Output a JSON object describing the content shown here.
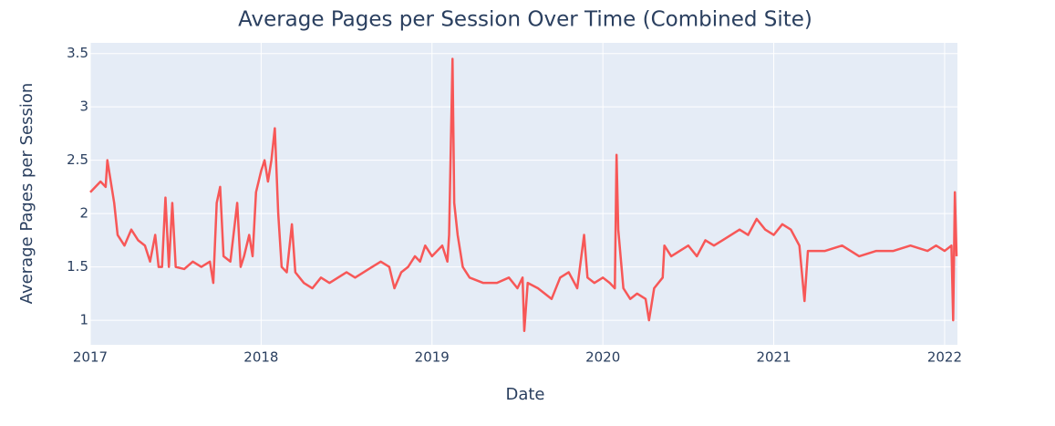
{
  "chart_data": {
    "type": "line",
    "title": "Average Pages per Session Over Time (Combined Site)",
    "x_label": "Date",
    "y_label": "Average Pages per Session",
    "color": "#f75757",
    "xlim": [
      2017,
      2022.075
    ],
    "xticks": [
      2017,
      2018,
      2019,
      2020,
      2021,
      2022
    ],
    "ylim": [
      0.77,
      3.6
    ],
    "yticks": [
      1,
      1.5,
      2,
      2.5,
      3,
      3.5
    ],
    "grid": true,
    "x": [
      2017.0,
      2017.03,
      2017.06,
      2017.09,
      2017.1,
      2017.12,
      2017.14,
      2017.16,
      2017.2,
      2017.24,
      2017.28,
      2017.32,
      2017.35,
      2017.38,
      2017.4,
      2017.42,
      2017.44,
      2017.46,
      2017.48,
      2017.5,
      2017.55,
      2017.6,
      2017.65,
      2017.7,
      2017.72,
      2017.74,
      2017.76,
      2017.78,
      2017.82,
      2017.86,
      2017.88,
      2017.9,
      2017.93,
      2017.95,
      2017.97,
      2018.0,
      2018.02,
      2018.04,
      2018.06,
      2018.08,
      2018.1,
      2018.12,
      2018.15,
      2018.18,
      2018.2,
      2018.25,
      2018.3,
      2018.35,
      2018.4,
      2018.45,
      2018.5,
      2018.55,
      2018.6,
      2018.65,
      2018.7,
      2018.75,
      2018.78,
      2018.82,
      2018.86,
      2018.9,
      2018.93,
      2018.96,
      2019.0,
      2019.03,
      2019.06,
      2019.09,
      2019.1,
      2019.12,
      2019.13,
      2019.15,
      2019.18,
      2019.22,
      2019.3,
      2019.38,
      2019.45,
      2019.5,
      2019.53,
      2019.54,
      2019.56,
      2019.62,
      2019.66,
      2019.7,
      2019.75,
      2019.8,
      2019.85,
      2019.89,
      2019.91,
      2019.95,
      2020.0,
      2020.04,
      2020.07,
      2020.08,
      2020.09,
      2020.12,
      2020.16,
      2020.2,
      2020.25,
      2020.27,
      2020.3,
      2020.35,
      2020.36,
      2020.4,
      2020.45,
      2020.5,
      2020.55,
      2020.6,
      2020.65,
      2020.7,
      2020.75,
      2020.8,
      2020.85,
      2020.9,
      2020.95,
      2021.0,
      2021.05,
      2021.1,
      2021.15,
      2021.18,
      2021.2,
      2021.3,
      2021.4,
      2021.5,
      2021.6,
      2021.7,
      2021.8,
      2021.9,
      2021.95,
      2022.0,
      2022.04,
      2022.05,
      2022.06,
      2022.07
    ],
    "values": [
      2.2,
      2.25,
      2.3,
      2.25,
      2.5,
      2.3,
      2.1,
      1.8,
      1.7,
      1.85,
      1.75,
      1.7,
      1.55,
      1.8,
      1.5,
      1.5,
      2.15,
      1.5,
      2.1,
      1.5,
      1.48,
      1.55,
      1.5,
      1.55,
      1.35,
      2.1,
      2.25,
      1.6,
      1.55,
      2.1,
      1.5,
      1.6,
      1.8,
      1.6,
      2.2,
      2.4,
      2.5,
      2.3,
      2.5,
      2.8,
      2.0,
      1.5,
      1.45,
      1.9,
      1.45,
      1.35,
      1.3,
      1.4,
      1.35,
      1.4,
      1.45,
      1.4,
      1.45,
      1.5,
      1.55,
      1.5,
      1.3,
      1.45,
      1.5,
      1.6,
      1.55,
      1.7,
      1.6,
      1.65,
      1.7,
      1.55,
      1.8,
      3.45,
      2.1,
      1.8,
      1.5,
      1.4,
      1.35,
      1.35,
      1.4,
      1.3,
      1.4,
      0.9,
      1.35,
      1.3,
      1.25,
      1.2,
      1.4,
      1.45,
      1.3,
      1.8,
      1.4,
      1.35,
      1.4,
      1.35,
      1.3,
      2.55,
      1.85,
      1.3,
      1.2,
      1.25,
      1.2,
      1.0,
      1.3,
      1.4,
      1.7,
      1.6,
      1.65,
      1.7,
      1.6,
      1.75,
      1.7,
      1.75,
      1.8,
      1.85,
      1.8,
      1.95,
      1.85,
      1.8,
      1.9,
      1.85,
      1.7,
      1.18,
      1.65,
      1.65,
      1.7,
      1.6,
      1.65,
      1.65,
      1.7,
      1.65,
      1.7,
      1.65,
      1.7,
      1.0,
      2.2,
      1.6
    ]
  }
}
